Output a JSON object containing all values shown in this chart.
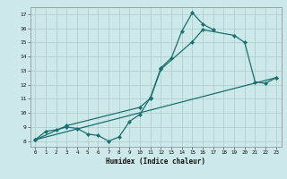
{
  "xlabel": "Humidex (Indice chaleur)",
  "bg_color": "#cce8e8",
  "grid_color": "#aacccc",
  "line_color": "#1a7070",
  "xlim": [
    -0.5,
    23.5
  ],
  "ylim": [
    7.6,
    17.5
  ],
  "xticks": [
    0,
    1,
    2,
    3,
    4,
    5,
    6,
    7,
    8,
    9,
    10,
    11,
    12,
    13,
    14,
    15,
    16,
    17,
    18,
    19,
    20,
    21,
    22,
    23
  ],
  "yticks": [
    8,
    9,
    10,
    11,
    12,
    13,
    14,
    15,
    16,
    17
  ],
  "line1_x": [
    0,
    1,
    2,
    3,
    4,
    5,
    6,
    7,
    8,
    9,
    10,
    11,
    12,
    13,
    14,
    15,
    16,
    17
  ],
  "line1_y": [
    8.1,
    8.7,
    8.8,
    9.0,
    8.9,
    8.5,
    8.4,
    8.0,
    8.3,
    9.4,
    9.9,
    11.1,
    13.2,
    13.9,
    15.8,
    17.1,
    16.3,
    15.9
  ],
  "line2_x": [
    0,
    3,
    10,
    11,
    12,
    15,
    16,
    19,
    20,
    21,
    22,
    23
  ],
  "line2_y": [
    8.1,
    9.1,
    10.4,
    11.05,
    13.1,
    15.05,
    15.9,
    15.5,
    15.0,
    12.2,
    12.1,
    12.5
  ],
  "line3_x": [
    0,
    23
  ],
  "line3_y": [
    8.1,
    12.5
  ]
}
